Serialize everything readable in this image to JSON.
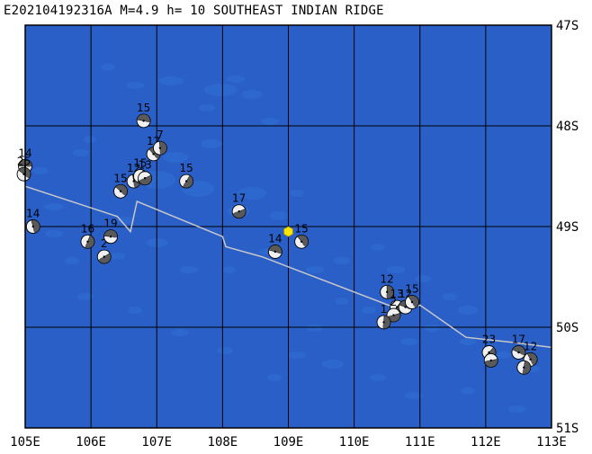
{
  "header": {
    "title": "E202104192316A M=4.9 h= 10 SOUTHEAST INDIAN RIDGE"
  },
  "map": {
    "ocean_color": "#2a5fc8",
    "shallow_color": "#2f6fd6",
    "grid_color": "#000000",
    "ridge_color": "#c8c8c8",
    "epicenter_color": "#ffe600",
    "lat_labels": [
      "47S",
      "48S",
      "49S",
      "50S",
      "51S"
    ],
    "lon_labels": [
      "105E",
      "106E",
      "107E",
      "108E",
      "109E",
      "110E",
      "111E",
      "112E",
      "113E"
    ],
    "lon_range": [
      105,
      113
    ],
    "lat_range": [
      -51,
      -47
    ],
    "epicenter": {
      "lon": 109.0,
      "lat": -49.05
    },
    "ridge": [
      [
        105.0,
        -48.6
      ],
      [
        106.4,
        -48.9
      ],
      [
        106.6,
        -49.05
      ],
      [
        106.7,
        -48.75
      ],
      [
        108.0,
        -49.1
      ],
      [
        108.05,
        -49.2
      ],
      [
        108.6,
        -49.3
      ],
      [
        109.2,
        -49.45
      ],
      [
        110.0,
        -49.65
      ],
      [
        110.6,
        -49.8
      ],
      [
        110.9,
        -49.8
      ],
      [
        111.0,
        -49.78
      ],
      [
        111.7,
        -50.1
      ],
      [
        112.4,
        -50.15
      ],
      [
        113.0,
        -50.2
      ]
    ],
    "mechanisms": [
      {
        "lon": 105.0,
        "lat": -48.4,
        "depth": "14"
      },
      {
        "lon": 104.98,
        "lat": -48.48,
        "depth": "25"
      },
      {
        "lon": 105.12,
        "lat": -49.0,
        "depth": "14"
      },
      {
        "lon": 105.95,
        "lat": -49.15,
        "depth": "16"
      },
      {
        "lon": 106.2,
        "lat": -49.3,
        "depth": "2"
      },
      {
        "lon": 106.3,
        "lat": -49.1,
        "depth": "19"
      },
      {
        "lon": 106.45,
        "lat": -48.65,
        "depth": "15"
      },
      {
        "lon": 106.65,
        "lat": -48.55,
        "depth": "12"
      },
      {
        "lon": 106.75,
        "lat": -48.5,
        "depth": "15"
      },
      {
        "lon": 106.82,
        "lat": -48.52,
        "depth": "13"
      },
      {
        "lon": 106.8,
        "lat": -47.95,
        "depth": "15"
      },
      {
        "lon": 106.95,
        "lat": -48.28,
        "depth": "12"
      },
      {
        "lon": 107.05,
        "lat": -48.22,
        "depth": "7"
      },
      {
        "lon": 107.45,
        "lat": -48.55,
        "depth": "15"
      },
      {
        "lon": 108.25,
        "lat": -48.85,
        "depth": "17"
      },
      {
        "lon": 108.8,
        "lat": -49.25,
        "depth": "14"
      },
      {
        "lon": 109.2,
        "lat": -49.15,
        "depth": "15"
      },
      {
        "lon": 110.5,
        "lat": -49.65,
        "depth": "12"
      },
      {
        "lon": 110.65,
        "lat": -49.8,
        "depth": "13"
      },
      {
        "lon": 110.6,
        "lat": -49.88,
        "depth": "2"
      },
      {
        "lon": 110.78,
        "lat": -49.8,
        "depth": "12"
      },
      {
        "lon": 110.88,
        "lat": -49.75,
        "depth": "15"
      },
      {
        "lon": 110.45,
        "lat": -49.95,
        "depth": "1"
      },
      {
        "lon": 112.05,
        "lat": -50.25,
        "depth": "23"
      },
      {
        "lon": 112.08,
        "lat": -50.33,
        "depth": ""
      },
      {
        "lon": 112.5,
        "lat": -50.25,
        "depth": "17"
      },
      {
        "lon": 112.68,
        "lat": -50.32,
        "depth": "12"
      },
      {
        "lon": 112.58,
        "lat": -50.4,
        "depth": ""
      }
    ]
  }
}
